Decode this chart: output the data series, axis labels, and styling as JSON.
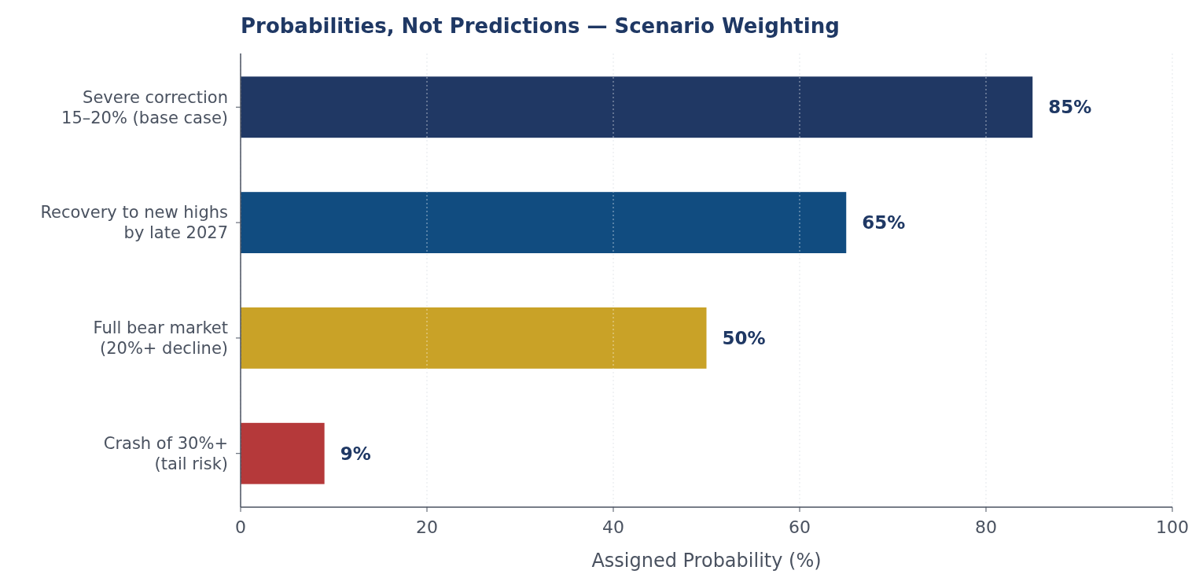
{
  "chart_data": {
    "type": "bar",
    "orientation": "horizontal",
    "title": "Probabilities, Not Predictions — Scenario Weighting",
    "xlabel": "Assigned Probability (%)",
    "categories": [
      "Severe correction\n15–20% (base case)",
      "Recovery to new highs\nby late 2027",
      "Full bear market\n(20%+ decline)",
      "Crash of 30%+\n(tail risk)"
    ],
    "values": [
      85,
      65,
      50,
      9
    ],
    "colors": [
      "#203864",
      "#114c80",
      "#c9a227",
      "#b5393a"
    ],
    "value_labels": [
      "85%",
      "65%",
      "50%",
      "9%"
    ],
    "xlim": [
      0,
      100
    ],
    "xticks": [
      0,
      20,
      40,
      60,
      80,
      100
    ],
    "grid": "x"
  }
}
